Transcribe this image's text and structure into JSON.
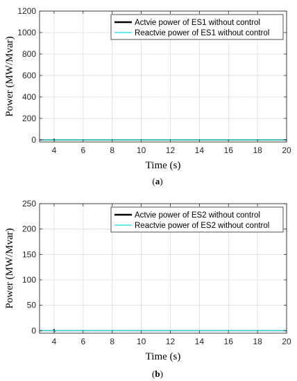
{
  "chart_data": [
    {
      "type": "line",
      "caption": "(a)",
      "caption_prefix": "(",
      "caption_letter": "a",
      "caption_suffix": ")",
      "xlabel": "Time (s)",
      "ylabel": "Power (MW/Mvar)",
      "xlim": [
        3,
        20
      ],
      "ylim": [
        -20,
        1200
      ],
      "xticks": [
        4,
        6,
        8,
        10,
        12,
        14,
        16,
        18,
        20
      ],
      "yticks": [
        0,
        200,
        400,
        600,
        800,
        1000,
        1200
      ],
      "grid": true,
      "legend_position": "top-right",
      "series": [
        {
          "name": "Actvie power of ES1 without control",
          "color": "#000000",
          "x": [
            3,
            3.95,
            4.0,
            4.05,
            4.1,
            20
          ],
          "values": [
            0,
            0,
            6,
            -3,
            0,
            0
          ]
        },
        {
          "name": "Reactvie power of ES1 without control",
          "color": "#33e0e8",
          "x": [
            3,
            20
          ],
          "values": [
            0,
            0
          ]
        }
      ]
    },
    {
      "type": "line",
      "caption": "(b)",
      "caption_prefix": "(",
      "caption_letter": "b",
      "caption_suffix": ")",
      "xlabel": "Time (s)",
      "ylabel": "Power (MW/Mvar)",
      "xlim": [
        3,
        20
      ],
      "ylim": [
        -5,
        250
      ],
      "xticks": [
        4,
        6,
        8,
        10,
        12,
        14,
        16,
        18,
        20
      ],
      "yticks": [
        0,
        50,
        100,
        150,
        200,
        250
      ],
      "grid": true,
      "legend_position": "top-right",
      "series": [
        {
          "name": "Actvie power of ES2 without control",
          "color": "#000000",
          "x": [
            3,
            3.95,
            4.0,
            4.05,
            4.1,
            20
          ],
          "values": [
            0,
            0,
            2,
            -1,
            0,
            0
          ]
        },
        {
          "name": "Reactvie power of ES2 without control",
          "color": "#33e0e8",
          "x": [
            3,
            20
          ],
          "values": [
            0,
            0
          ]
        }
      ]
    }
  ]
}
